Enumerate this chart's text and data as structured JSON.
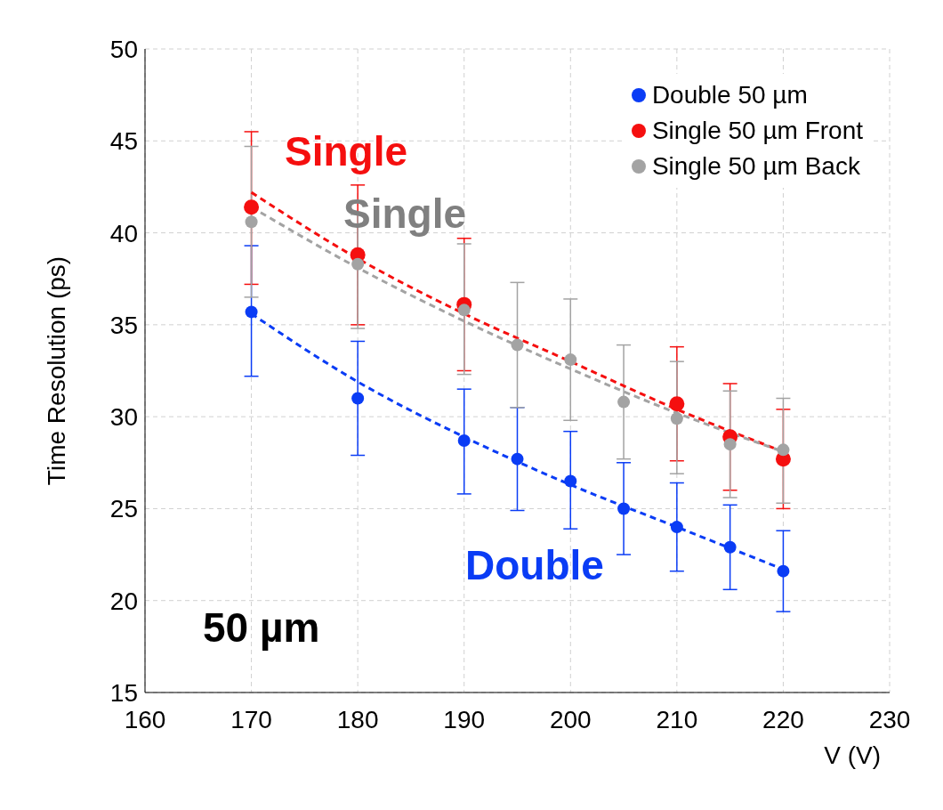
{
  "chart_data": {
    "type": "scatter",
    "xlabel": "V (V)",
    "ylabel": "Time Resolution (ps)",
    "x": [
      170,
      180,
      190,
      195,
      200,
      205,
      210,
      215,
      220
    ],
    "xlim": [
      160,
      230
    ],
    "xticks": [
      160,
      170,
      180,
      190,
      200,
      210,
      220,
      230
    ],
    "ylim": [
      15,
      50
    ],
    "yticks": [
      15,
      20,
      25,
      30,
      35,
      40,
      45,
      50
    ],
    "grid": true,
    "legend": "top right",
    "marker": "circle",
    "series": [
      {
        "name": "Double 50 µm",
        "color": "#0a3cf5",
        "values": [
          35.7,
          31.0,
          28.7,
          27.7,
          26.5,
          25.0,
          24.0,
          22.9,
          21.6
        ],
        "errors": [
          [
            32.2,
            39.3
          ],
          [
            27.9,
            34.1
          ],
          [
            25.8,
            31.5
          ],
          [
            24.9,
            30.5
          ],
          [
            23.9,
            29.2
          ],
          [
            22.5,
            27.5
          ],
          [
            21.6,
            26.4
          ],
          [
            20.6,
            25.2
          ],
          [
            19.4,
            23.8
          ]
        ]
      },
      {
        "name": "Single 50 µm Front",
        "color": "#f50f0f",
        "values": [
          41.4,
          38.8,
          36.1,
          null,
          null,
          null,
          30.7,
          28.9,
          27.7
        ],
        "errors": [
          [
            37.2,
            45.5
          ],
          [
            35.0,
            42.6
          ],
          [
            32.5,
            39.7
          ],
          null,
          null,
          null,
          [
            27.6,
            33.8
          ],
          [
            26.0,
            31.8
          ],
          [
            25.0,
            30.4
          ]
        ]
      },
      {
        "name": "Single 50 µm Back",
        "color": "#a3a3a3",
        "values": [
          40.6,
          38.3,
          35.8,
          33.9,
          33.1,
          30.8,
          29.9,
          28.5,
          28.2
        ],
        "errors": [
          [
            36.5,
            44.7
          ],
          [
            34.8,
            41.0
          ],
          [
            32.3,
            39.4
          ],
          [
            30.5,
            37.3
          ],
          [
            29.8,
            36.4
          ],
          [
            27.7,
            33.9
          ],
          [
            26.9,
            33.0
          ],
          [
            25.6,
            31.4
          ],
          [
            25.3,
            31.0
          ]
        ]
      },
      {
        "type": "line",
        "marker": "none",
        "line_style": "dashed",
        "color": "#0a3cf5",
        "x": [
          170,
          180,
          190,
          200,
          210,
          220
        ],
        "values": [
          35.6,
          31.9,
          28.9,
          26.3,
          24.0,
          21.7
        ]
      },
      {
        "type": "line",
        "marker": "none",
        "line_style": "dashed",
        "color": "#f50f0f",
        "x": [
          170,
          180,
          190,
          200,
          210,
          220
        ],
        "values": [
          42.2,
          38.6,
          35.6,
          33.0,
          30.4,
          28.1
        ]
      },
      {
        "type": "line",
        "marker": "none",
        "line_style": "dashed",
        "color": "#a3a3a3",
        "x": [
          170,
          180,
          190,
          200,
          210,
          220
        ],
        "values": [
          41.4,
          38.1,
          35.2,
          32.6,
          30.2,
          28.1
        ]
      }
    ],
    "annotations": [
      "Single",
      "Single",
      "Double",
      "50 µm"
    ]
  }
}
